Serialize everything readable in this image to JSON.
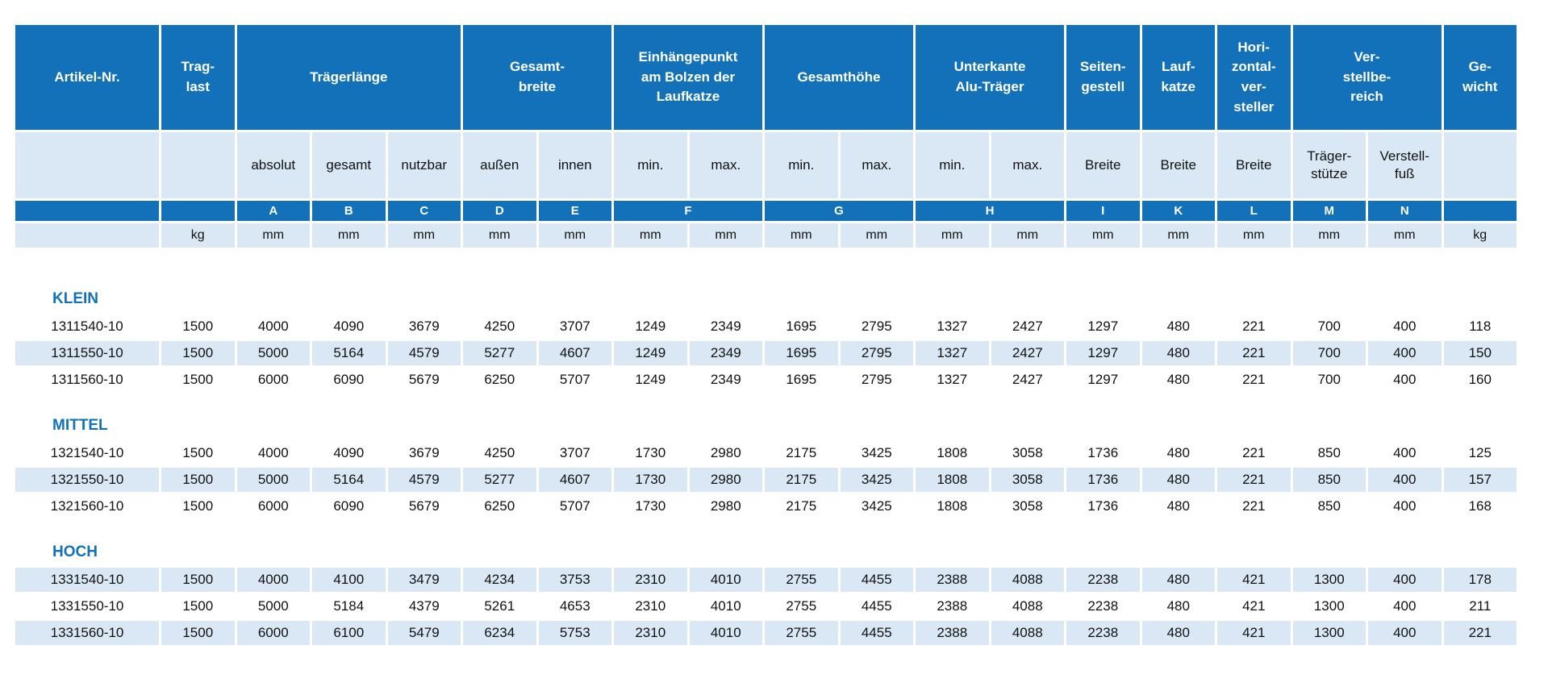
{
  "table": {
    "colors": {
      "header_blue": "#1271B8",
      "row_shade_light_blue": "#D9E8F4",
      "group_label_blue": "#1271B8",
      "header_text": "#FFFFFF",
      "body_text": "#111111"
    },
    "header": {
      "row1": [
        {
          "label": "Artikel-Nr.",
          "span": 1
        },
        {
          "label": "Trag-\nlast",
          "span": 1
        },
        {
          "label": "Trägerlänge",
          "span": 3
        },
        {
          "label": "Gesamt-\nbreite",
          "span": 2
        },
        {
          "label": "Einhängepunkt\nam Bolzen der\nLaufkatze",
          "span": 2
        },
        {
          "label": "Gesamthöhe",
          "span": 2
        },
        {
          "label": "Unterkante\nAlu-Träger",
          "span": 2
        },
        {
          "label": "Seiten-\ngestell",
          "span": 1
        },
        {
          "label": "Lauf-\nkatze",
          "span": 1
        },
        {
          "label": "Hori-\nzontal-\nver-\nsteller",
          "span": 1
        },
        {
          "label": "Ver-\nstellbe-\nreich",
          "span": 2
        },
        {
          "label": "Ge-\nwicht",
          "span": 1
        }
      ],
      "row2": [
        "",
        "",
        "absolut",
        "gesamt",
        "nutzbar",
        "außen",
        "innen",
        "min.",
        "max.",
        "min.",
        "max.",
        "min.",
        "max.",
        "Breite",
        "Breite",
        "Breite",
        "Träger-\nstütze",
        "Verstell-\nfuß",
        ""
      ],
      "row3": [
        {
          "label": "",
          "span": 1
        },
        {
          "label": "",
          "span": 1
        },
        {
          "label": "A",
          "span": 1
        },
        {
          "label": "B",
          "span": 1
        },
        {
          "label": "C",
          "span": 1
        },
        {
          "label": "D",
          "span": 1
        },
        {
          "label": "E",
          "span": 1
        },
        {
          "label": "F",
          "span": 2
        },
        {
          "label": "G",
          "span": 2
        },
        {
          "label": "H",
          "span": 2
        },
        {
          "label": "I",
          "span": 1
        },
        {
          "label": "K",
          "span": 1
        },
        {
          "label": "L",
          "span": 1
        },
        {
          "label": "M",
          "span": 1
        },
        {
          "label": "N",
          "span": 1
        },
        {
          "label": "",
          "span": 1
        }
      ],
      "row4": [
        "",
        "kg",
        "mm",
        "mm",
        "mm",
        "mm",
        "mm",
        "mm",
        "mm",
        "mm",
        "mm",
        "mm",
        "mm",
        "mm",
        "mm",
        "mm",
        "mm",
        "mm",
        "kg"
      ]
    },
    "groups": [
      {
        "name": "KLEIN",
        "shaded": [
          false,
          true,
          false
        ],
        "rows": [
          [
            "1311540-10",
            "1500",
            "4000",
            "4090",
            "3679",
            "4250",
            "3707",
            "1249",
            "2349",
            "1695",
            "2795",
            "1327",
            "2427",
            "1297",
            "480",
            "221",
            "700",
            "400",
            "118"
          ],
          [
            "1311550-10",
            "1500",
            "5000",
            "5164",
            "4579",
            "5277",
            "4607",
            "1249",
            "2349",
            "1695",
            "2795",
            "1327",
            "2427",
            "1297",
            "480",
            "221",
            "700",
            "400",
            "150"
          ],
          [
            "1311560-10",
            "1500",
            "6000",
            "6090",
            "5679",
            "6250",
            "5707",
            "1249",
            "2349",
            "1695",
            "2795",
            "1327",
            "2427",
            "1297",
            "480",
            "221",
            "700",
            "400",
            "160"
          ]
        ]
      },
      {
        "name": "MITTEL",
        "shaded": [
          false,
          true,
          false
        ],
        "rows": [
          [
            "1321540-10",
            "1500",
            "4000",
            "4090",
            "3679",
            "4250",
            "3707",
            "1730",
            "2980",
            "2175",
            "3425",
            "1808",
            "3058",
            "1736",
            "480",
            "221",
            "850",
            "400",
            "125"
          ],
          [
            "1321550-10",
            "1500",
            "5000",
            "5164",
            "4579",
            "5277",
            "4607",
            "1730",
            "2980",
            "2175",
            "3425",
            "1808",
            "3058",
            "1736",
            "480",
            "221",
            "850",
            "400",
            "157"
          ],
          [
            "1321560-10",
            "1500",
            "6000",
            "6090",
            "5679",
            "6250",
            "5707",
            "1730",
            "2980",
            "2175",
            "3425",
            "1808",
            "3058",
            "1736",
            "480",
            "221",
            "850",
            "400",
            "168"
          ]
        ]
      },
      {
        "name": "HOCH",
        "shaded": [
          true,
          false,
          true
        ],
        "rows": [
          [
            "1331540-10",
            "1500",
            "4000",
            "4100",
            "3479",
            "4234",
            "3753",
            "2310",
            "4010",
            "2755",
            "4455",
            "2388",
            "4088",
            "2238",
            "480",
            "421",
            "1300",
            "400",
            "178"
          ],
          [
            "1331550-10",
            "1500",
            "5000",
            "5184",
            "4379",
            "5261",
            "4653",
            "2310",
            "4010",
            "2755",
            "4455",
            "2388",
            "4088",
            "2238",
            "480",
            "421",
            "1300",
            "400",
            "211"
          ],
          [
            "1331560-10",
            "1500",
            "6000",
            "6100",
            "5479",
            "6234",
            "5753",
            "2310",
            "4010",
            "2755",
            "4455",
            "2388",
            "4088",
            "2238",
            "480",
            "421",
            "1300",
            "400",
            "221"
          ]
        ]
      }
    ]
  }
}
